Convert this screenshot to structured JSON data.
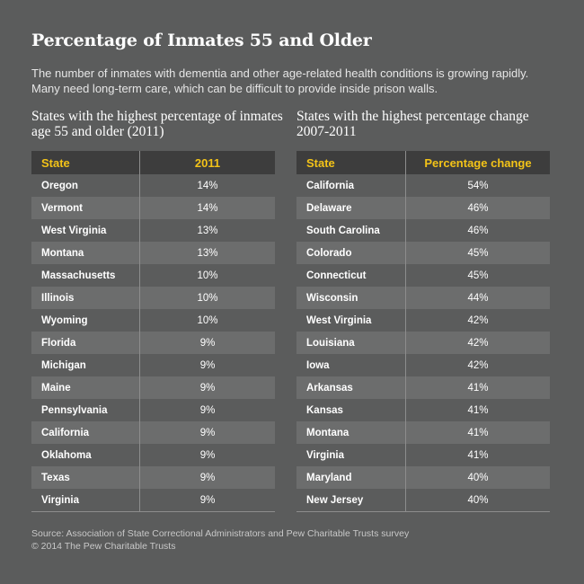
{
  "title": "Percentage of Inmates 55 and Older",
  "intro": "The number of inmates with dementia and other age-related health conditions is growing rapidly. Many need long-term care, which can be difficult to provide inside prison walls.",
  "left_table": {
    "subtitle": "States with the highest percentage of inmates age 55 and older (2011)",
    "headers": [
      "State",
      "2011"
    ],
    "rows": [
      [
        "Oregon",
        "14%"
      ],
      [
        "Vermont",
        "14%"
      ],
      [
        "West Virginia",
        "13%"
      ],
      [
        "Montana",
        "13%"
      ],
      [
        "Massachusetts",
        "10%"
      ],
      [
        "Illinois",
        "10%"
      ],
      [
        "Wyoming",
        "10%"
      ],
      [
        "Florida",
        "9%"
      ],
      [
        "Michigan",
        "9%"
      ],
      [
        "Maine",
        "9%"
      ],
      [
        "Pennsylvania",
        "9%"
      ],
      [
        "California",
        "9%"
      ],
      [
        "Oklahoma",
        "9%"
      ],
      [
        "Texas",
        "9%"
      ],
      [
        "Virginia",
        "9%"
      ]
    ]
  },
  "right_table": {
    "subtitle": "States with the highest percentage change 2007-2011",
    "headers": [
      "State",
      "Percentage change"
    ],
    "rows": [
      [
        "California",
        "54%"
      ],
      [
        "Delaware",
        "46%"
      ],
      [
        "South Carolina",
        "46%"
      ],
      [
        "Colorado",
        "45%"
      ],
      [
        "Connecticut",
        "45%"
      ],
      [
        "Wisconsin",
        "44%"
      ],
      [
        "West Virginia",
        "42%"
      ],
      [
        "Louisiana",
        "42%"
      ],
      [
        "Iowa",
        "42%"
      ],
      [
        "Arkansas",
        "41%"
      ],
      [
        "Kansas",
        "41%"
      ],
      [
        "Montana",
        "41%"
      ],
      [
        "Virginia",
        "41%"
      ],
      [
        "Maryland",
        "40%"
      ],
      [
        "New Jersey",
        "40%"
      ]
    ]
  },
  "footer": {
    "source": "Source: Association of State Correctional Administrators and Pew Charitable Trusts survey",
    "copyright": "© 2014 The Pew Charitable Trusts"
  },
  "colors": {
    "background": "#5b5c5c",
    "header_background": "#3d3d3d",
    "header_text": "#f3c318",
    "alt_row": "#6c6d6d"
  }
}
